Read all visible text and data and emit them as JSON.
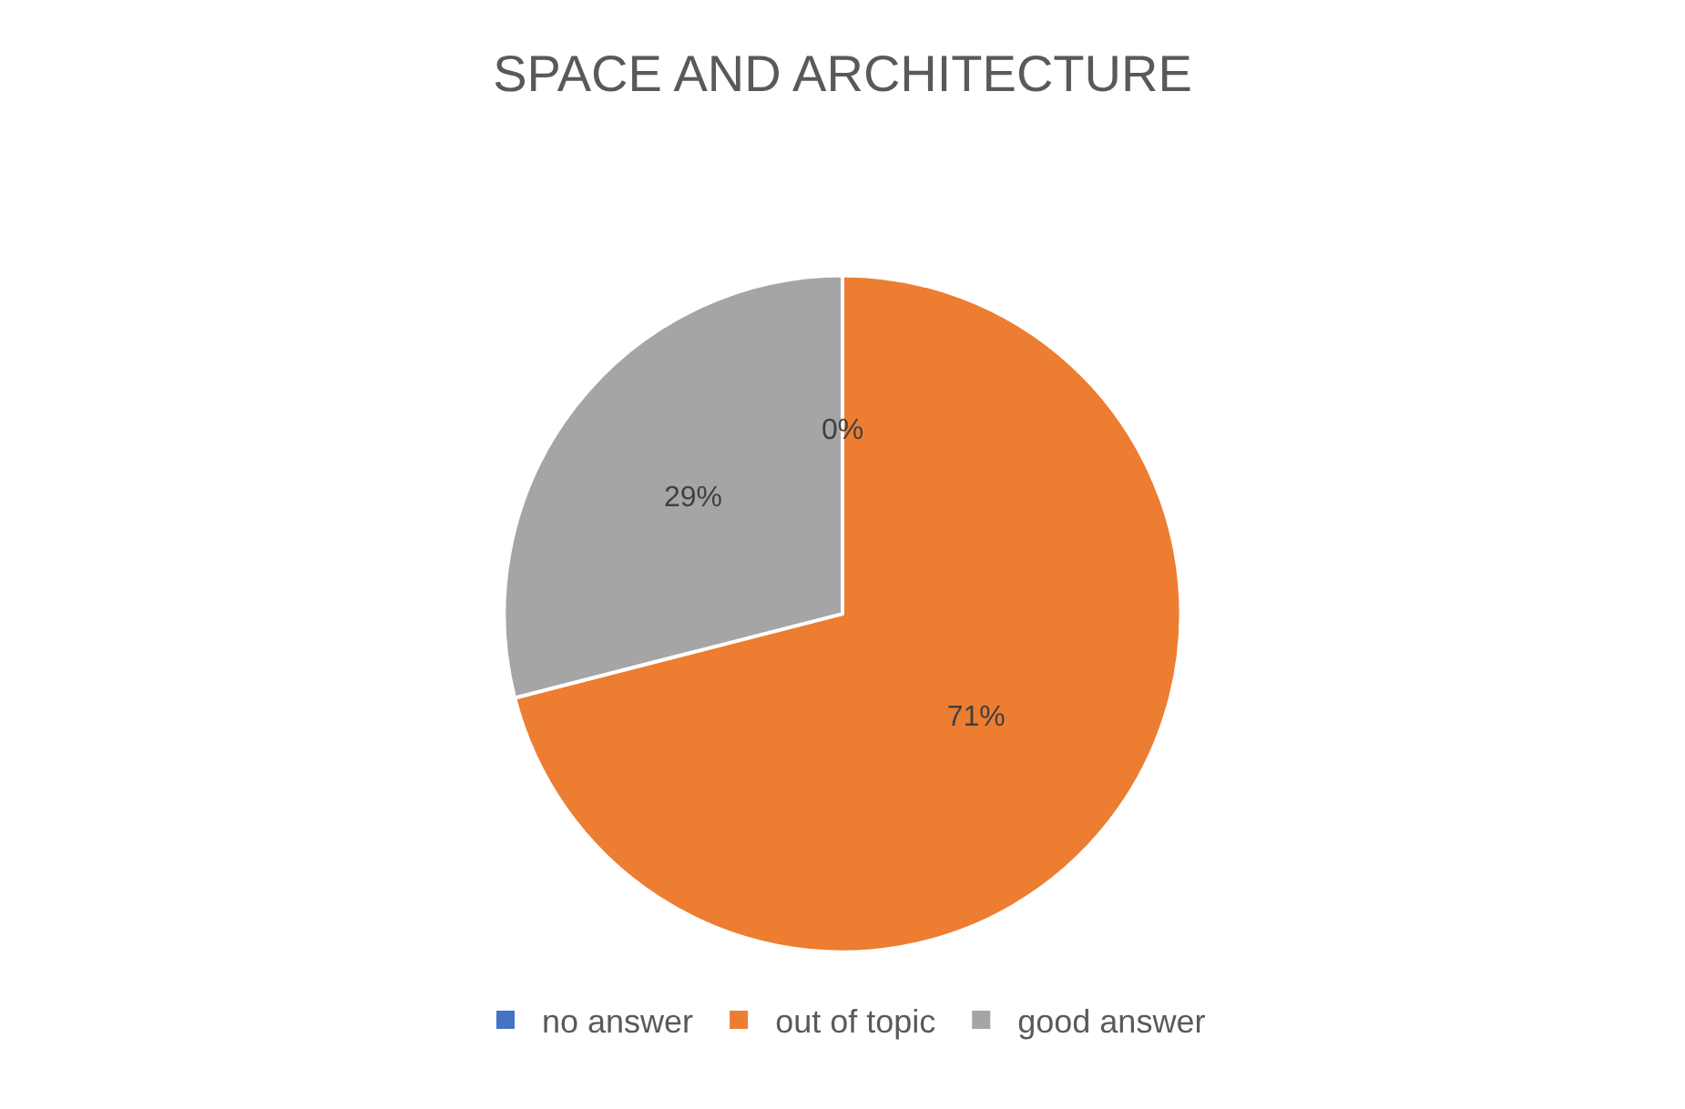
{
  "chart_data": {
    "type": "pie",
    "title": "SPACE AND ARCHITECTURE",
    "categories": [
      "no answer",
      "out of topic",
      "good answer"
    ],
    "values": [
      0,
      71,
      29
    ],
    "colors": [
      "#4472c4",
      "#ed7d31",
      "#a5a5a5"
    ],
    "value_labels": [
      "0%",
      "71%",
      "29%"
    ],
    "legend": "bottom"
  }
}
